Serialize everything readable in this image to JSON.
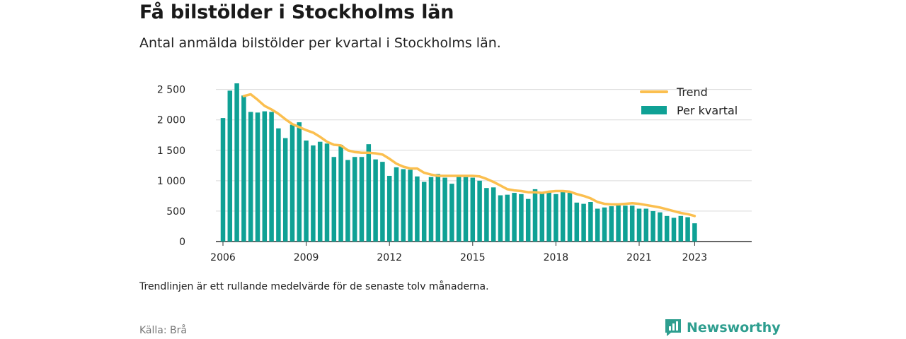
{
  "title": "Få bilstölder i Stockholms län",
  "subtitle": "Antal anmälda bilstölder per kvartal i Stockholms län.",
  "note": "Trendlinjen är ett rullande medelvärde för de senaste tolv månaderna.",
  "source": "Källa: Brå",
  "brand": {
    "name": "Newsworthy",
    "icon": "newsworthy-logo-icon",
    "color": "#2e9e8f"
  },
  "colors": {
    "bars": "#0fa195",
    "trend": "#fbbf4f",
    "grid": "#d9d9d9",
    "axis": "#333333"
  },
  "chart_data": {
    "type": "bar",
    "x_axis": {
      "type": "quarterly-time",
      "start": "2006-Q1",
      "tick_labels": [
        "2006",
        "2009",
        "2012",
        "2015",
        "2018",
        "2021",
        "2023"
      ],
      "tick_years": [
        2006,
        2009,
        2012,
        2015,
        2018,
        2021,
        2023
      ]
    },
    "y_axis": {
      "ylim": [
        0,
        2600
      ],
      "ticks": [
        0,
        500,
        1000,
        1500,
        2000,
        2500
      ],
      "tick_labels": [
        "0",
        "500",
        "1 000",
        "1 500",
        "2 000",
        "2 500"
      ],
      "grid": true
    },
    "legend": {
      "position": "top-right",
      "entries": [
        "Trend",
        "Per kvartal"
      ]
    },
    "series": [
      {
        "name": "Per kvartal",
        "kind": "bar",
        "values": [
          2030,
          2480,
          2600,
          2400,
          2130,
          2120,
          2140,
          2130,
          1860,
          1700,
          1920,
          1960,
          1660,
          1580,
          1640,
          1610,
          1390,
          1590,
          1340,
          1390,
          1390,
          1600,
          1350,
          1310,
          1080,
          1220,
          1190,
          1180,
          1070,
          980,
          1060,
          1110,
          1050,
          950,
          1070,
          1060,
          1050,
          1000,
          880,
          890,
          760,
          770,
          800,
          780,
          700,
          860,
          800,
          820,
          780,
          840,
          800,
          640,
          620,
          650,
          540,
          560,
          580,
          620,
          590,
          590,
          540,
          540,
          500,
          480,
          420,
          390,
          420,
          400,
          300
        ]
      },
      {
        "name": "Trend",
        "kind": "line",
        "values": [
          null,
          null,
          null,
          2390,
          2420,
          2330,
          2230,
          2170,
          2100,
          2010,
          1930,
          1880,
          1830,
          1790,
          1720,
          1640,
          1590,
          1580,
          1500,
          1470,
          1460,
          1460,
          1450,
          1430,
          1360,
          1280,
          1230,
          1200,
          1200,
          1130,
          1100,
          1080,
          1080,
          1080,
          1080,
          1080,
          1080,
          1070,
          1030,
          980,
          920,
          860,
          840,
          830,
          810,
          810,
          800,
          820,
          830,
          830,
          820,
          780,
          750,
          710,
          650,
          620,
          610,
          610,
          620,
          630,
          620,
          600,
          580,
          560,
          530,
          500,
          470,
          450,
          420
        ]
      }
    ]
  }
}
